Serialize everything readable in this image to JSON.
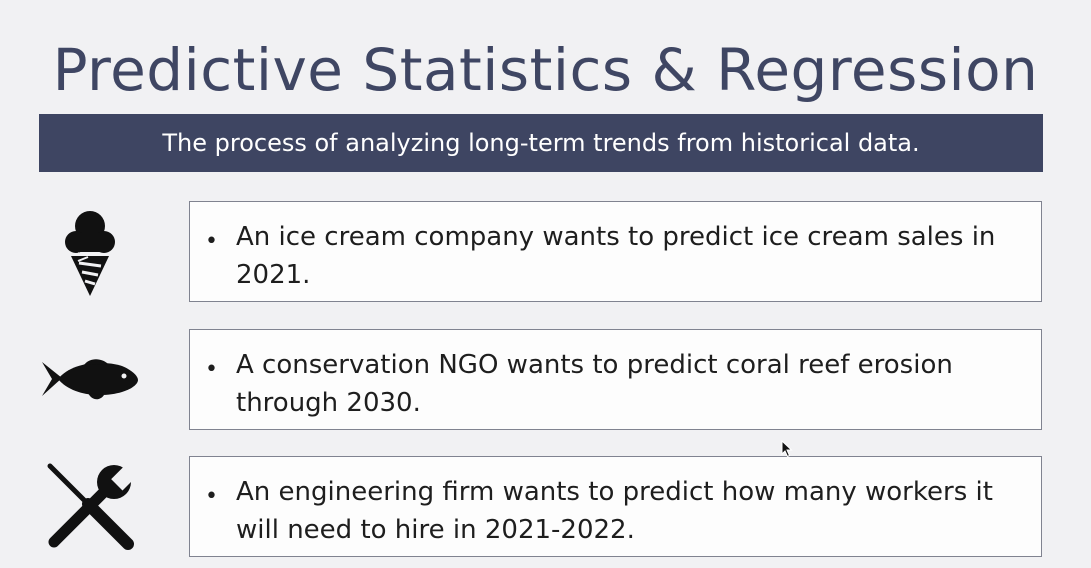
{
  "slide": {
    "title": "Predictive Statistics & Regression",
    "subtitle": "The process of analyzing long-term trends from historical data."
  },
  "examples": [
    {
      "icon": "ice-cream-icon",
      "bullet": "•",
      "text": "An ice cream company wants to predict ice cream sales in 2021."
    },
    {
      "icon": "fish-icon",
      "bullet": "•",
      "text": "A conservation NGO wants to predict coral reef erosion through 2030."
    },
    {
      "icon": "tools-icon",
      "bullet": "•",
      "text": "An engineering firm wants to predict how many workers it will need to hire in 2021-2022."
    }
  ],
  "colors": {
    "background": "#f1f1f3",
    "title": "#3f4663",
    "banner": "#3e4562",
    "card_border": "#808390",
    "icon": "#111111"
  }
}
